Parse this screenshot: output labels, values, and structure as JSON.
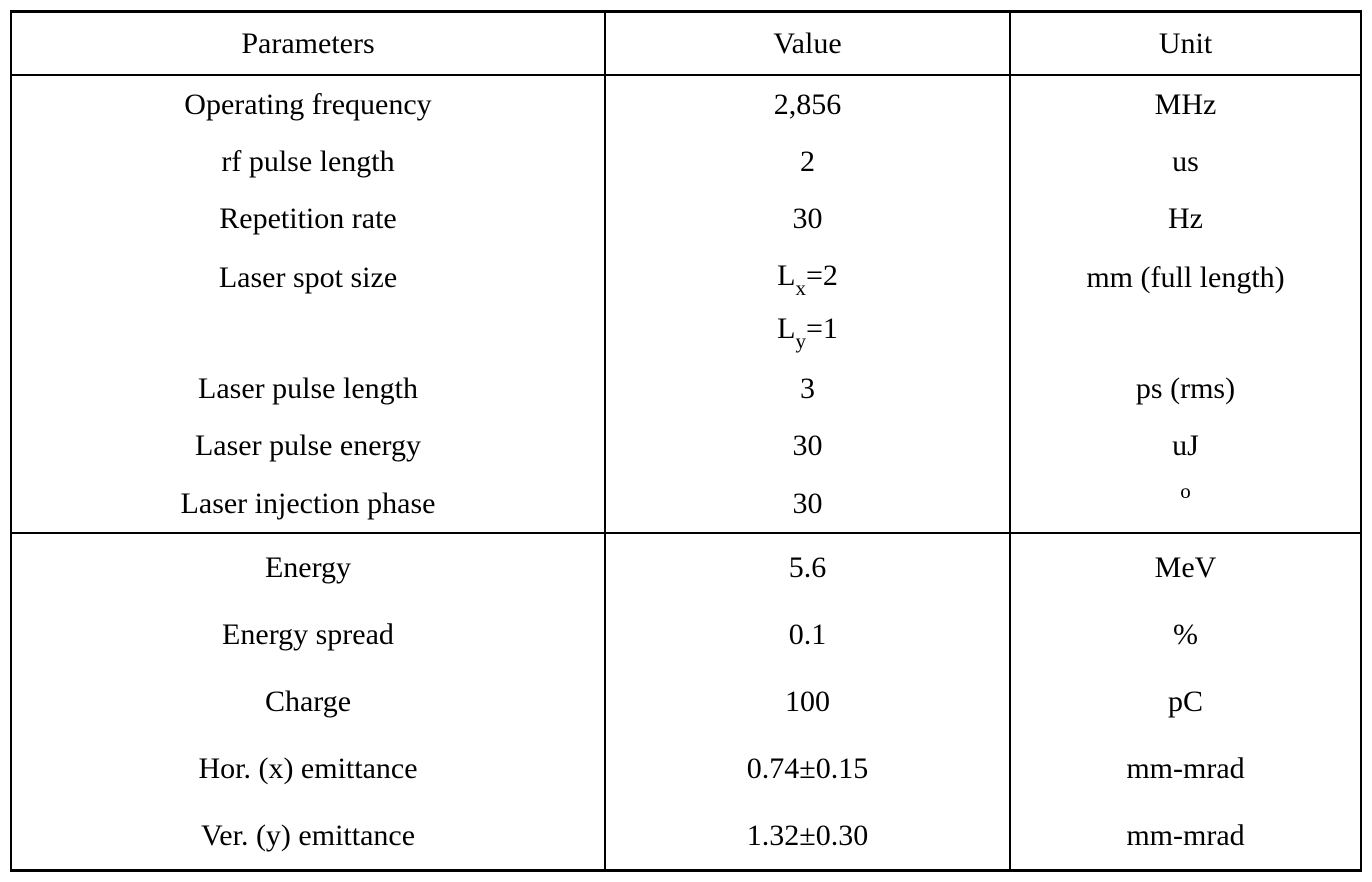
{
  "table": {
    "columns": [
      "Parameters",
      "Value",
      "Unit"
    ],
    "header_fontsize": 30,
    "body_fontsize": 30,
    "border_color": "#000000",
    "background_color": "#ffffff",
    "text_color": "#000000",
    "col_widths_pct": [
      44,
      30,
      26
    ],
    "section1": {
      "rows": [
        {
          "param": "Operating frequency",
          "value": "2,856",
          "unit": "MHz"
        },
        {
          "param": "rf pulse length",
          "value": "2",
          "unit": "us"
        },
        {
          "param": "Repetition rate",
          "value": "30",
          "unit": "Hz"
        },
        {
          "param": "Laser spot size",
          "value_line1": {
            "base": "L",
            "sub": "x",
            "eq": "=2"
          },
          "value_line2": {
            "base": "L",
            "sub": "y",
            "eq": "=1"
          },
          "unit": "mm (full length)"
        },
        {
          "param": "Laser pulse length",
          "value": "3",
          "unit": "ps (rms)"
        },
        {
          "param": "Laser pulse energy",
          "value": "30",
          "unit": "uJ"
        },
        {
          "param": "Laser injection phase",
          "value": "30",
          "unit_sup": "o"
        }
      ]
    },
    "section2": {
      "rows": [
        {
          "param": "Energy",
          "value": "5.6",
          "unit": "MeV"
        },
        {
          "param": "Energy spread",
          "value": "0.1",
          "unit": "%"
        },
        {
          "param": "Charge",
          "value": "100",
          "unit": "pC"
        },
        {
          "param": "Hor. (x) emittance",
          "value": "0.74±0.15",
          "unit": "mm-mrad"
        },
        {
          "param": "Ver. (y) emittance",
          "value": "1.32±0.30",
          "unit": "mm-mrad"
        }
      ]
    }
  }
}
